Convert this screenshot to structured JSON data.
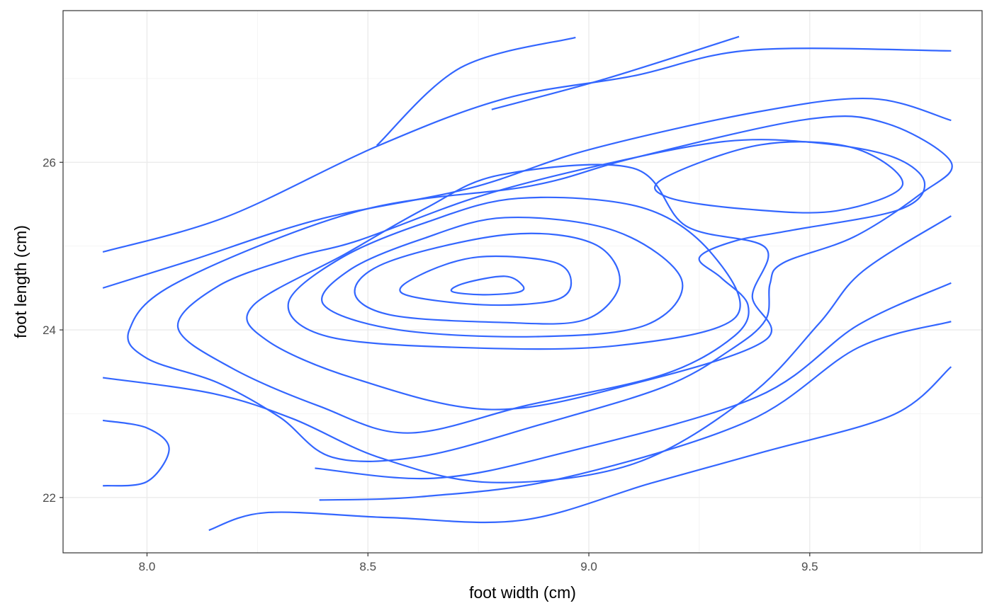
{
  "chart_data": {
    "type": "contour",
    "xlabel": "foot width (cm)",
    "ylabel": "foot length (cm)",
    "xlim": [
      7.81,
      9.89
    ],
    "ylim": [
      21.34,
      27.81
    ],
    "x_ticks": [
      8.0,
      8.5,
      9.0,
      9.5
    ],
    "x_tick_labels": [
      "8.0",
      "8.5",
      "9.0",
      "9.5"
    ],
    "y_ticks": [
      22,
      24,
      26
    ],
    "y_tick_labels": [
      "22",
      "24",
      "26"
    ],
    "grid": true,
    "line_color": "#3366ff",
    "series": [
      {
        "values": [
          [
            8.81,
            24.64
          ],
          [
            8.85,
            24.53
          ],
          [
            8.84,
            24.45
          ],
          [
            8.76,
            24.42
          ],
          [
            8.69,
            24.46
          ],
          [
            8.72,
            24.56
          ]
        ]
      },
      {
        "values": [
          [
            8.75,
            24.87
          ],
          [
            8.92,
            24.81
          ],
          [
            8.96,
            24.56
          ],
          [
            8.92,
            24.35
          ],
          [
            8.76,
            24.3
          ],
          [
            8.58,
            24.43
          ],
          [
            8.62,
            24.66
          ]
        ]
      },
      {
        "values": [
          [
            8.82,
            25.14
          ],
          [
            9.01,
            25.03
          ],
          [
            9.07,
            24.56
          ],
          [
            8.99,
            24.12
          ],
          [
            8.8,
            24.09
          ],
          [
            8.55,
            24.18
          ],
          [
            8.47,
            24.46
          ],
          [
            8.55,
            24.82
          ]
        ]
      },
      {
        "values": [
          [
            8.81,
            25.34
          ],
          [
            9.06,
            25.18
          ],
          [
            9.21,
            24.6
          ],
          [
            9.13,
            24.06
          ],
          [
            8.88,
            23.92
          ],
          [
            8.57,
            24.0
          ],
          [
            8.4,
            24.3
          ],
          [
            8.46,
            24.72
          ],
          [
            8.62,
            25.08
          ]
        ]
      },
      {
        "values": [
          [
            8.84,
            25.57
          ],
          [
            9.12,
            25.46
          ],
          [
            9.28,
            24.9
          ],
          [
            9.33,
            24.14
          ],
          [
            9.06,
            23.81
          ],
          [
            8.71,
            23.79
          ],
          [
            8.41,
            23.92
          ],
          [
            8.32,
            24.32
          ],
          [
            8.44,
            24.86
          ],
          [
            8.63,
            25.28
          ]
        ]
      },
      {
        "values": [
          [
            8.8,
            25.85
          ],
          [
            9.1,
            25.93
          ],
          [
            9.22,
            25.24
          ],
          [
            9.4,
            24.98
          ],
          [
            9.37,
            24.4
          ],
          [
            9.4,
            23.88
          ],
          [
            9.11,
            23.37
          ],
          [
            8.78,
            23.05
          ],
          [
            8.47,
            23.42
          ],
          [
            8.27,
            23.88
          ],
          [
            8.24,
            24.29
          ],
          [
            8.45,
            24.91
          ],
          [
            8.63,
            25.45
          ]
        ]
      },
      {
        "values": [
          [
            9.17,
            25.81
          ],
          [
            9.39,
            26.21
          ],
          [
            9.6,
            26.17
          ],
          [
            9.71,
            25.73
          ],
          [
            9.56,
            25.42
          ],
          [
            9.36,
            25.44
          ],
          [
            9.18,
            25.58
          ]
        ]
      },
      {
        "values": [
          [
            8.48,
            25.07
          ],
          [
            8.75,
            25.59
          ],
          [
            9.03,
            25.97
          ],
          [
            9.31,
            26.25
          ],
          [
            9.52,
            26.23
          ],
          [
            9.69,
            26.06
          ],
          [
            9.76,
            25.75
          ],
          [
            9.7,
            25.43
          ],
          [
            9.46,
            25.19
          ],
          [
            9.33,
            25.06
          ],
          [
            9.25,
            24.86
          ],
          [
            9.3,
            24.62
          ],
          [
            9.36,
            24.3
          ],
          [
            9.33,
            23.93
          ],
          [
            9.17,
            23.47
          ],
          [
            8.86,
            23.1
          ],
          [
            8.59,
            22.77
          ],
          [
            8.39,
            23.09
          ],
          [
            8.19,
            23.55
          ],
          [
            8.07,
            24.03
          ],
          [
            8.16,
            24.52
          ],
          [
            8.33,
            24.86
          ]
        ]
      },
      {
        "values": [
          [
            7.96,
            24.0
          ],
          [
            8.07,
            24.57
          ],
          [
            8.48,
            25.42
          ],
          [
            8.87,
            25.72
          ],
          [
            9.1,
            26.05
          ],
          [
            9.49,
            26.51
          ],
          [
            9.67,
            26.47
          ],
          [
            9.82,
            26.0
          ],
          [
            9.75,
            25.62
          ],
          [
            9.6,
            25.11
          ],
          [
            9.44,
            24.8
          ],
          [
            9.41,
            24.55
          ],
          [
            9.4,
            24.12
          ],
          [
            9.32,
            23.76
          ],
          [
            9.17,
            23.32
          ],
          [
            8.89,
            22.87
          ],
          [
            8.62,
            22.49
          ],
          [
            8.42,
            22.48
          ],
          [
            8.3,
            22.96
          ],
          [
            8.16,
            23.37
          ],
          [
            8.0,
            23.66
          ]
        ]
      },
      {
        "values": [
          [
            7.9,
            23.43
          ],
          [
            8.15,
            23.24
          ],
          [
            8.33,
            22.94
          ],
          [
            8.53,
            22.47
          ],
          [
            8.78,
            22.18
          ],
          [
            9.1,
            22.4
          ],
          [
            9.36,
            23.2
          ],
          [
            9.52,
            24.07
          ],
          [
            9.62,
            24.7
          ],
          [
            9.82,
            25.36
          ]
        ]
      },
      {
        "values": [
          [
            7.9,
            22.92
          ],
          [
            8.0,
            22.83
          ],
          [
            8.05,
            22.58
          ],
          [
            8.0,
            22.19
          ],
          [
            7.9,
            22.14
          ]
        ]
      },
      {
        "values": [
          [
            8.14,
            21.61
          ],
          [
            8.27,
            21.82
          ],
          [
            8.55,
            21.76
          ],
          [
            8.85,
            21.73
          ],
          [
            9.14,
            22.17
          ],
          [
            9.4,
            22.55
          ],
          [
            9.69,
            22.99
          ],
          [
            9.82,
            23.56
          ]
        ]
      },
      {
        "values": [
          [
            8.39,
            21.97
          ],
          [
            8.62,
            22.01
          ],
          [
            8.94,
            22.23
          ],
          [
            9.36,
            22.91
          ],
          [
            9.61,
            23.79
          ],
          [
            9.82,
            24.1
          ]
        ]
      },
      {
        "values": [
          [
            8.38,
            22.35
          ],
          [
            8.65,
            22.23
          ],
          [
            8.94,
            22.53
          ],
          [
            9.38,
            23.2
          ],
          [
            9.61,
            24.06
          ],
          [
            9.82,
            24.56
          ]
        ]
      },
      {
        "values": [
          [
            7.9,
            24.5
          ],
          [
            8.1,
            24.83
          ],
          [
            8.39,
            25.32
          ],
          [
            8.73,
            25.69
          ],
          [
            9.0,
            26.15
          ],
          [
            9.38,
            26.6
          ],
          [
            9.64,
            26.76
          ],
          [
            9.82,
            26.5
          ]
        ]
      },
      {
        "values": [
          [
            7.9,
            24.93
          ],
          [
            8.18,
            25.35
          ],
          [
            8.52,
            26.19
          ],
          [
            8.81,
            26.76
          ],
          [
            9.1,
            27.03
          ],
          [
            9.37,
            27.34
          ],
          [
            9.82,
            27.33
          ]
        ]
      },
      {
        "values": [
          [
            8.52,
            26.2
          ],
          [
            8.71,
            27.13
          ],
          [
            8.97,
            27.49
          ]
        ]
      },
      {
        "values": [
          [
            8.78,
            26.63
          ],
          [
            9.04,
            27.0
          ],
          [
            9.34,
            27.5
          ]
        ]
      }
    ]
  }
}
